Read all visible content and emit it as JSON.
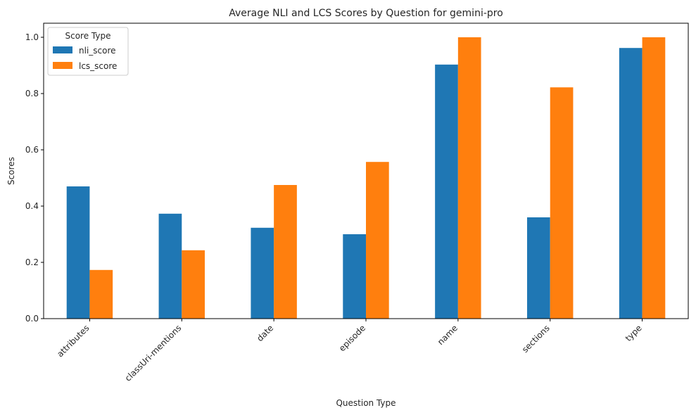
{
  "chart_data": {
    "type": "bar",
    "title": "Average NLI and LCS Scores by Question for gemini-pro",
    "xlabel": "Question Type",
    "ylabel": "Scores",
    "categories": [
      "attributes",
      "classUri-mentions",
      "date",
      "episode",
      "name",
      "sections",
      "type"
    ],
    "series": [
      {
        "name": "nli_score",
        "color": "#1f77b4",
        "values": [
          0.47,
          0.373,
          0.323,
          0.3,
          0.903,
          0.36,
          0.962
        ]
      },
      {
        "name": "lcs_score",
        "color": "#ff7f0e",
        "values": [
          0.173,
          0.243,
          0.475,
          0.557,
          1.0,
          0.822,
          1.0
        ]
      }
    ],
    "ylim": [
      0,
      1.05
    ],
    "yticks": [
      0.0,
      0.2,
      0.4,
      0.6,
      0.8,
      1.0
    ],
    "ytick_labels": [
      "0.0",
      "0.2",
      "0.4",
      "0.6",
      "0.8",
      "1.0"
    ],
    "grid": false,
    "legend": {
      "title": "Score Type",
      "position": "top-left"
    }
  }
}
